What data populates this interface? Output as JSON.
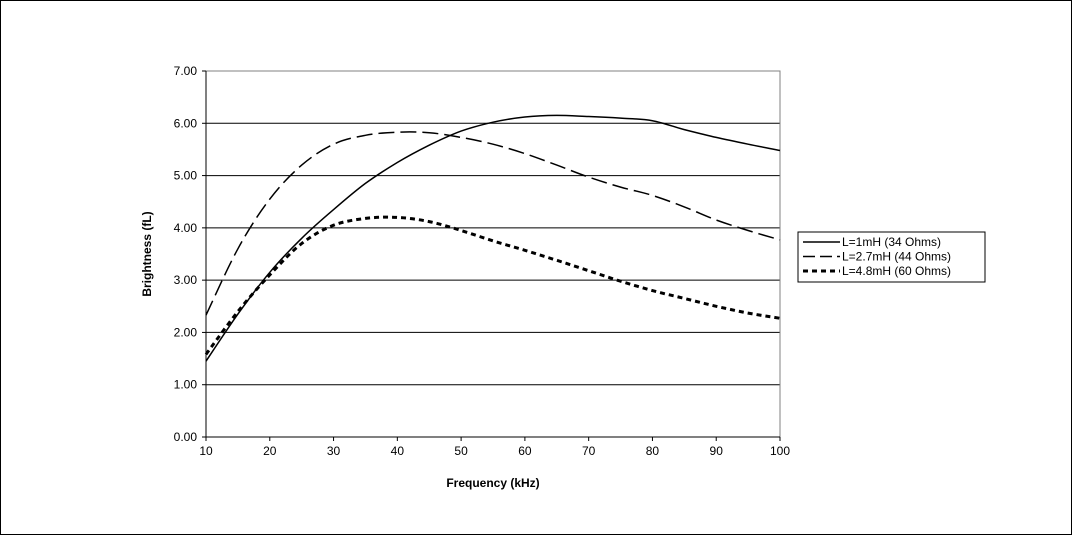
{
  "chart_data": {
    "type": "line",
    "title": "",
    "xlabel": "Frequency (kHz)",
    "ylabel": "Brightness (fL)",
    "xlim": [
      10,
      100
    ],
    "ylim": [
      0,
      7
    ],
    "x_ticks": [
      "10",
      "20",
      "30",
      "40",
      "50",
      "60",
      "70",
      "80",
      "90",
      "100"
    ],
    "y_ticks": [
      "0.00",
      "1.00",
      "2.00",
      "3.00",
      "4.00",
      "5.00",
      "6.00",
      "7.00"
    ],
    "grid": "horizontal",
    "legend_position": "right",
    "colors": {
      "line": "#000000",
      "grid": "#000000",
      "background": "#ffffff"
    },
    "series": [
      {
        "name": "L=1mH (34 Ohms)",
        "style": "solid",
        "x": [
          10,
          15,
          20,
          25,
          30,
          35,
          40,
          45,
          50,
          55,
          60,
          65,
          70,
          75,
          80,
          85,
          90,
          95,
          100
        ],
        "y": [
          1.45,
          2.35,
          3.15,
          3.8,
          4.35,
          4.85,
          5.25,
          5.58,
          5.85,
          6.02,
          6.12,
          6.15,
          6.13,
          6.1,
          6.05,
          5.88,
          5.73,
          5.6,
          5.48
        ]
      },
      {
        "name": "L=2.7mH (44 Ohms)",
        "style": "dashed",
        "x": [
          10,
          15,
          20,
          25,
          30,
          35,
          40,
          45,
          50,
          55,
          60,
          65,
          70,
          75,
          80,
          85,
          90,
          95,
          100
        ],
        "y": [
          2.33,
          3.6,
          4.55,
          5.2,
          5.6,
          5.77,
          5.83,
          5.82,
          5.73,
          5.6,
          5.42,
          5.2,
          4.97,
          4.78,
          4.62,
          4.4,
          4.15,
          3.95,
          3.77
        ]
      },
      {
        "name": "L=4.8mH (60 Ohms)",
        "style": "dotted",
        "x": [
          10,
          15,
          20,
          25,
          30,
          35,
          40,
          45,
          50,
          55,
          60,
          65,
          70,
          75,
          80,
          85,
          90,
          95,
          100
        ],
        "y": [
          1.58,
          2.4,
          3.1,
          3.7,
          4.05,
          4.18,
          4.2,
          4.12,
          3.95,
          3.75,
          3.57,
          3.38,
          3.18,
          2.98,
          2.8,
          2.65,
          2.5,
          2.37,
          2.27
        ]
      }
    ]
  }
}
